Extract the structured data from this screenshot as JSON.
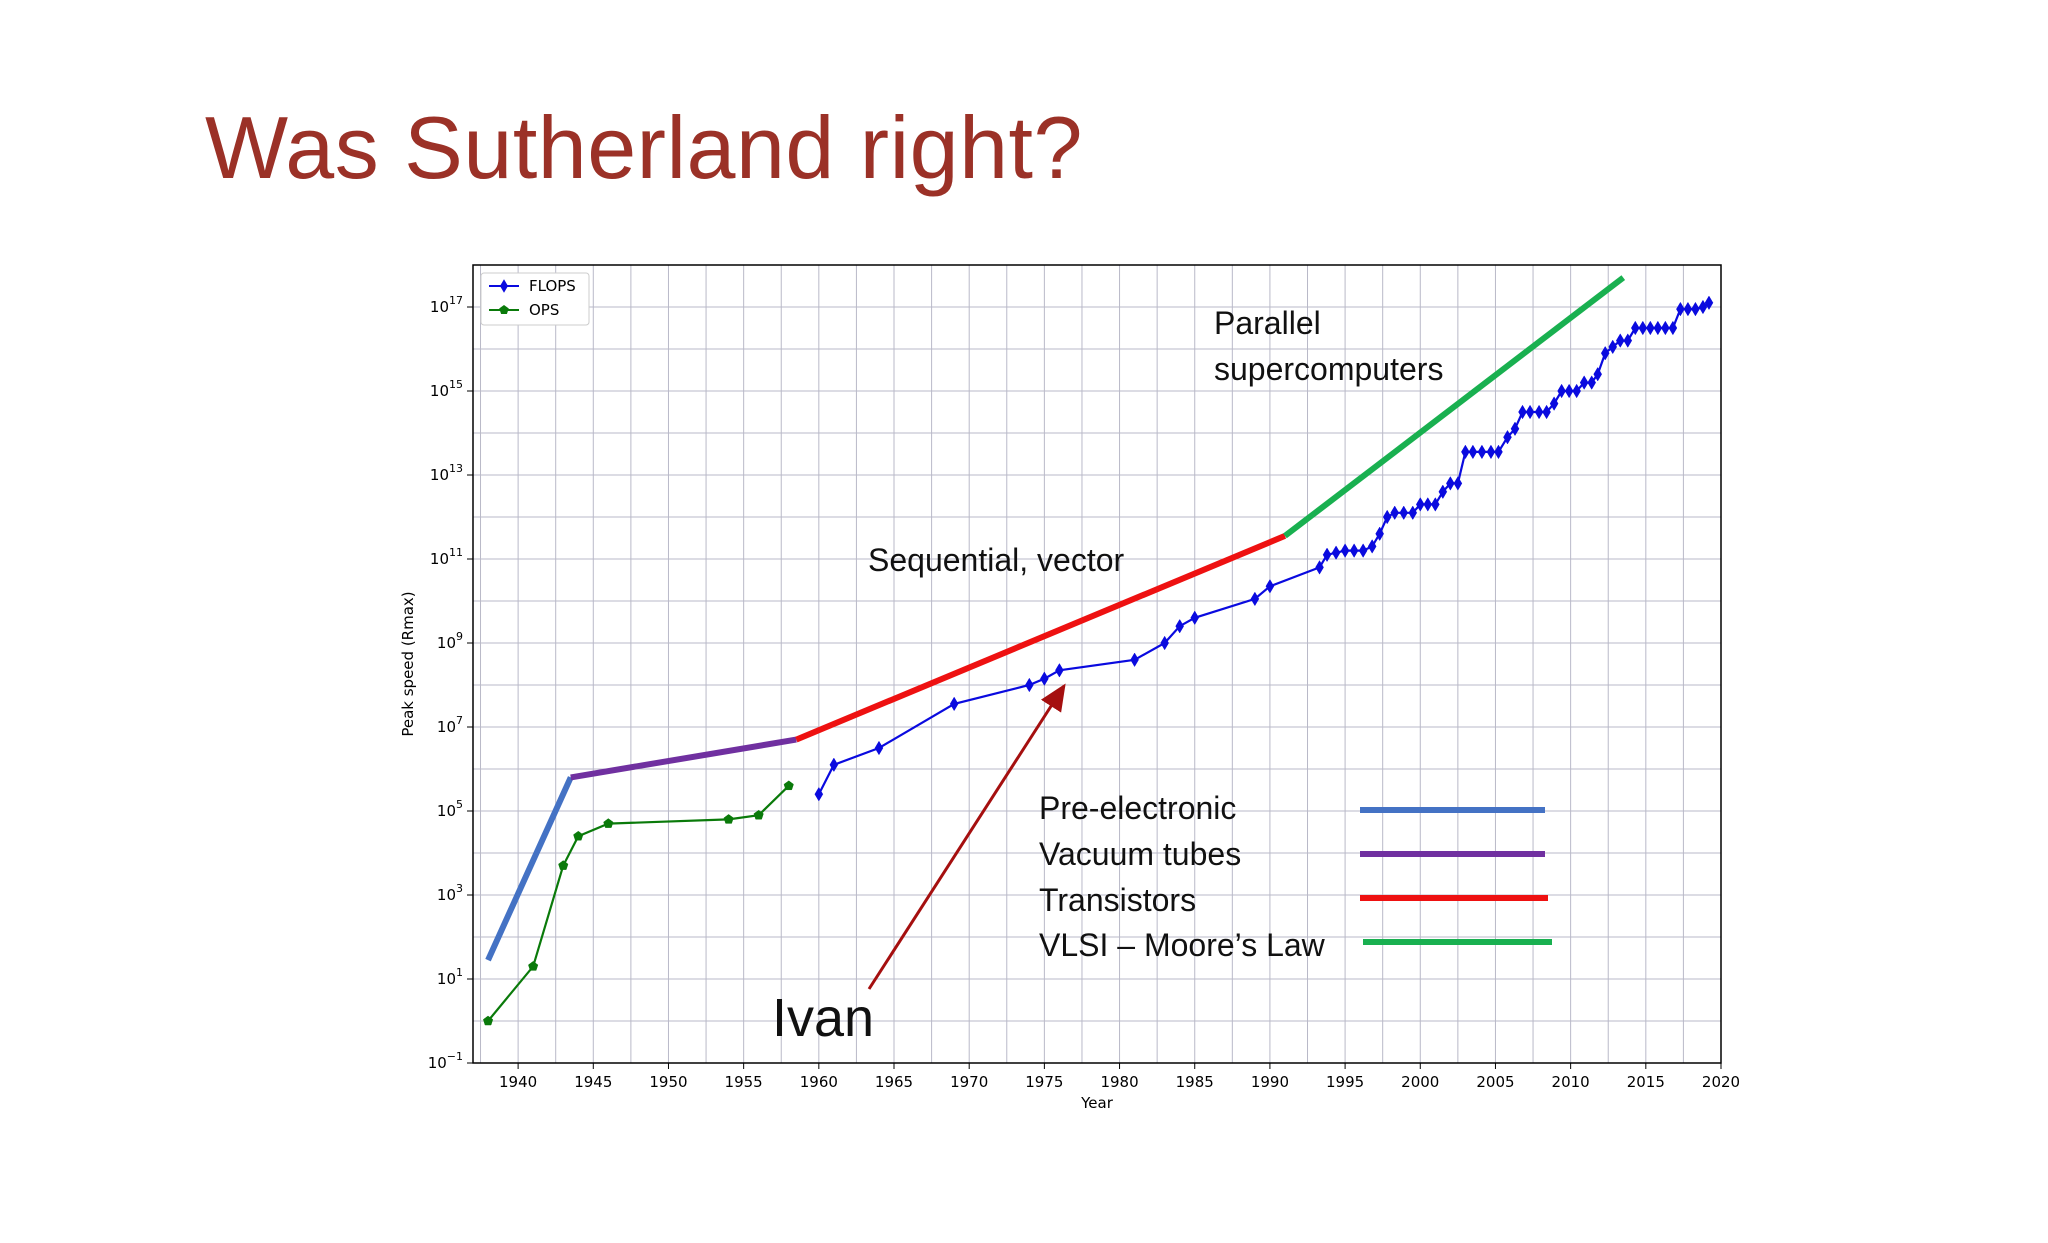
{
  "slide": {
    "title": "Was Sutherland right?",
    "title_color": "#9b3127"
  },
  "chart_data": {
    "type": "line",
    "title": "",
    "xlabel": "Year",
    "ylabel": "Peak speed (Rmax)",
    "y_scale": "log10",
    "xlim": [
      1937,
      2020
    ],
    "ylim_exp": [
      -1,
      18
    ],
    "x_ticks": [
      1940,
      1945,
      1950,
      1955,
      1960,
      1965,
      1970,
      1975,
      1980,
      1985,
      1990,
      1995,
      2000,
      2005,
      2010,
      2015,
      2020
    ],
    "y_ticks": [
      {
        "base": "10",
        "exp": "17",
        "value_exp": 17
      },
      {
        "base": "10",
        "exp": "15",
        "value_exp": 15
      },
      {
        "base": "10",
        "exp": "13",
        "value_exp": 13
      },
      {
        "base": "10",
        "exp": "11",
        "value_exp": 11
      },
      {
        "base": "10",
        "exp": "9",
        "value_exp": 9
      },
      {
        "base": "10",
        "exp": "7",
        "value_exp": 7
      },
      {
        "base": "10",
        "exp": "5",
        "value_exp": 5
      },
      {
        "base": "10",
        "exp": "3",
        "value_exp": 3
      },
      {
        "base": "10",
        "exp": "1",
        "value_exp": 1
      },
      {
        "base": "10",
        "exp": "−1",
        "value_exp": -1
      }
    ],
    "grid": true,
    "legend_position": "top-left",
    "series": [
      {
        "name": "FLOPS",
        "color": "#0a0adf",
        "marker": "diamond",
        "points": [
          [
            1960.0,
            5.4
          ],
          [
            1961.0,
            6.1
          ],
          [
            1964.0,
            6.5
          ],
          [
            1969.0,
            7.55
          ],
          [
            1974.0,
            8.0
          ],
          [
            1975.0,
            8.15
          ],
          [
            1976.0,
            8.35
          ],
          [
            1981.0,
            8.6
          ],
          [
            1983.0,
            9.0
          ],
          [
            1984.0,
            9.4
          ],
          [
            1985.0,
            9.6
          ],
          [
            1989.0,
            10.05
          ],
          [
            1990.0,
            10.35
          ],
          [
            1993.3,
            10.8
          ],
          [
            1993.8,
            11.1
          ],
          [
            1994.4,
            11.15
          ],
          [
            1995.0,
            11.2
          ],
          [
            1995.6,
            11.2
          ],
          [
            1996.2,
            11.2
          ],
          [
            1996.8,
            11.3
          ],
          [
            1997.3,
            11.6
          ],
          [
            1997.8,
            12.0
          ],
          [
            1998.3,
            12.1
          ],
          [
            1998.9,
            12.1
          ],
          [
            1999.5,
            12.1
          ],
          [
            2000.0,
            12.3
          ],
          [
            2000.5,
            12.3
          ],
          [
            2001.0,
            12.3
          ],
          [
            2001.5,
            12.6
          ],
          [
            2002.0,
            12.8
          ],
          [
            2002.5,
            12.8
          ],
          [
            2003.0,
            13.55
          ],
          [
            2003.5,
            13.55
          ],
          [
            2004.1,
            13.55
          ],
          [
            2004.7,
            13.55
          ],
          [
            2005.2,
            13.55
          ],
          [
            2005.8,
            13.9
          ],
          [
            2006.3,
            14.1
          ],
          [
            2006.8,
            14.5
          ],
          [
            2007.3,
            14.5
          ],
          [
            2007.9,
            14.5
          ],
          [
            2008.4,
            14.5
          ],
          [
            2008.9,
            14.7
          ],
          [
            2009.4,
            15.0
          ],
          [
            2009.9,
            15.0
          ],
          [
            2010.4,
            15.0
          ],
          [
            2010.9,
            15.2
          ],
          [
            2011.4,
            15.2
          ],
          [
            2011.8,
            15.4
          ],
          [
            2012.3,
            15.9
          ],
          [
            2012.8,
            16.05
          ],
          [
            2013.3,
            16.2
          ],
          [
            2013.8,
            16.2
          ],
          [
            2014.3,
            16.5
          ],
          [
            2014.8,
            16.5
          ],
          [
            2015.3,
            16.5
          ],
          [
            2015.8,
            16.5
          ],
          [
            2016.3,
            16.5
          ],
          [
            2016.8,
            16.5
          ],
          [
            2017.3,
            16.95
          ],
          [
            2017.8,
            16.95
          ],
          [
            2018.3,
            16.95
          ],
          [
            2018.8,
            17.0
          ],
          [
            2019.2,
            17.1
          ]
        ]
      },
      {
        "name": "OPS",
        "color": "#0a7a0a",
        "marker": "pentagon",
        "points": [
          [
            1938.0,
            0.0
          ],
          [
            1941.0,
            1.3
          ],
          [
            1943.0,
            3.7
          ],
          [
            1944.0,
            4.4
          ],
          [
            1946.0,
            4.7
          ],
          [
            1954.0,
            4.8
          ],
          [
            1956.0,
            4.9
          ],
          [
            1958.0,
            5.6
          ]
        ]
      }
    ],
    "era_lines": [
      {
        "label": "Pre-electronic",
        "color": "#4472c4",
        "from": [
          1938.0,
          1.45
        ],
        "to": [
          1943.5,
          5.8
        ]
      },
      {
        "label": "Vacuum tubes",
        "color": "#7030a0",
        "from": [
          1943.5,
          5.8
        ],
        "to": [
          1958.5,
          6.7
        ]
      },
      {
        "label": "Transistors",
        "color": "#ee1111",
        "from": [
          1958.5,
          6.7
        ],
        "to": [
          1991.0,
          11.55
        ]
      },
      {
        "label": "VLSI – Moore’s Law",
        "color": "#19b050",
        "from": [
          1991.0,
          11.55
        ],
        "to": [
          2013.5,
          17.7
        ]
      }
    ],
    "annotations": {
      "parallel_line1": "Parallel",
      "parallel_line2": "supercomputers",
      "sequential": "Sequential, vector",
      "ivan": "Ivan",
      "arrow_color": "#a50f0f"
    },
    "era_legend": [
      "Pre-electronic",
      "Vacuum tubes",
      "Transistors",
      "VLSI – Moore’s Law"
    ]
  }
}
